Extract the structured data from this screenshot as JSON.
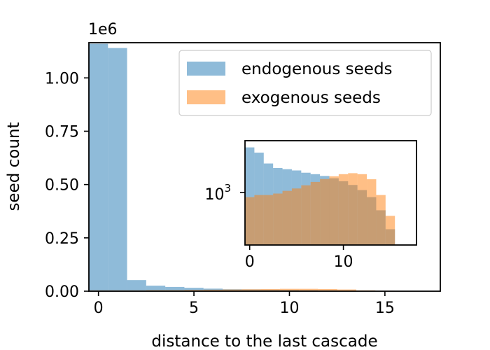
{
  "chart_data": [
    {
      "type": "bar",
      "role": "main",
      "offset_text": "1e6",
      "xlabel": "distance to the last cascade",
      "ylabel": "seed count",
      "xlim": [
        -0.5,
        17.9
      ],
      "ylim": [
        0,
        1.165
      ],
      "xticks": [
        0,
        5,
        10,
        15
      ],
      "yticks": [
        0.0,
        0.25,
        0.5,
        0.75,
        1.0
      ],
      "xtick_labels": [
        "0",
        "5",
        "10",
        "15"
      ],
      "ytick_labels": [
        "0.00",
        "0.25",
        "0.50",
        "0.75",
        "1.00"
      ],
      "bin_edges": [
        -0.5,
        0.5,
        1.5,
        2.5,
        3.5,
        4.5,
        5.5,
        6.5,
        7.5,
        8.5,
        9.5,
        10.5,
        11.5,
        12.5,
        13.5,
        14.5,
        15.5
      ],
      "series": [
        {
          "name": "endogenous seeds",
          "color": "#1f77b4",
          "values": [
            1.16,
            1.14,
            0.052,
            0.026,
            0.02,
            0.016,
            0.012,
            0.009,
            0.008,
            0.007,
            0.006,
            0.005,
            0.004,
            0.003,
            0.002,
            0.001
          ]
        },
        {
          "name": "exogenous seeds",
          "color": "#ff7f0e",
          "values": [
            0.004,
            0.004,
            0.004,
            0.005,
            0.005,
            0.006,
            0.007,
            0.008,
            0.009,
            0.01,
            0.011,
            0.011,
            0.01,
            0.008,
            0.004,
            0.002
          ]
        }
      ],
      "legend": {
        "location": "upper right",
        "entries": [
          "endogenous seeds",
          "exogenous seeds"
        ]
      }
    },
    {
      "type": "bar",
      "role": "inset",
      "yscale": "log",
      "xlim": [
        -0.5,
        17.8
      ],
      "ylim": [
        100,
        9800
      ],
      "xticks": [
        0,
        10
      ],
      "xtick_labels": [
        "0",
        "10"
      ],
      "yticks": [
        1000
      ],
      "ytick_labels": [
        "10",
        "3"
      ],
      "bin_edges": [
        -0.5,
        0.5,
        1.5,
        2.5,
        3.5,
        4.5,
        5.5,
        6.5,
        7.5,
        8.5,
        9.5,
        10.5,
        11.5,
        12.5,
        13.5,
        14.5,
        15.5
      ],
      "series": [
        {
          "name": "endogenous seeds",
          "color": "#1f77b4",
          "values": [
            7300,
            5800,
            3600,
            2950,
            2800,
            2650,
            2400,
            2250,
            2080,
            1880,
            1650,
            1400,
            1120,
            820,
            460,
            200
          ]
        },
        {
          "name": "exogenous seeds",
          "color": "#ff7f0e",
          "values": [
            820,
            900,
            900,
            960,
            1080,
            1200,
            1380,
            1600,
            1820,
            2050,
            2250,
            2350,
            2250,
            1800,
            900,
            360
          ]
        }
      ]
    }
  ]
}
